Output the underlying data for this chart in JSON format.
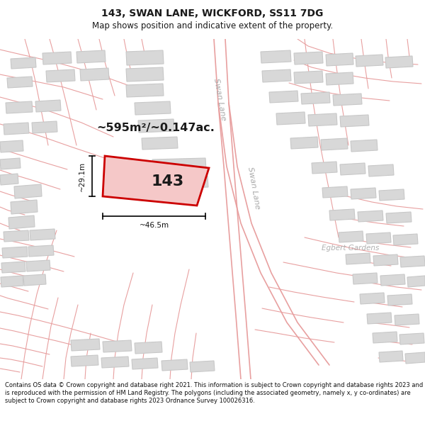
{
  "title": "143, SWAN LANE, WICKFORD, SS11 7DG",
  "subtitle": "Map shows position and indicative extent of the property.",
  "footer": "Contains OS data © Crown copyright and database right 2021. This information is subject to Crown copyright and database rights 2023 and is reproduced with the permission of HM Land Registry. The polygons (including the associated geometry, namely x, y co-ordinates) are subject to Crown copyright and database rights 2023 Ordnance Survey 100026316.",
  "map_bg": "#f5f5f5",
  "area_label": "~595m²/~0.147ac.",
  "property_label": "143",
  "dim_width": "~46.5m",
  "dim_height": "~29.1m",
  "road_label_upper": "Swan Lane",
  "road_label_lower": "Swan Lane",
  "road_label_egbert": "Egbert Gardens",
  "plot_color": "#cc0000",
  "plot_fill": "#f5c8c8",
  "road_line_color": "#e8a0a0",
  "building_fill": "#d8d8d8",
  "building_edge": "#c8c8c8",
  "title_fontsize": 10,
  "subtitle_fontsize": 8.5,
  "footer_fontsize": 6.0
}
